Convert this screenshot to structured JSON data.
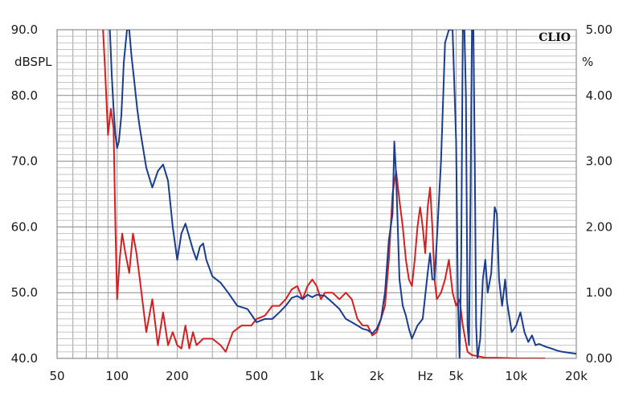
{
  "chart_data": {
    "type": "line",
    "title": "",
    "brand": "CLIO",
    "x_unit_label": "Hz",
    "left_axis": {
      "unit": "dBSPL",
      "range": [
        40,
        90
      ],
      "tick_labels": [
        "90.0",
        "80.0",
        "70.0",
        "60.0",
        "50.0",
        "40.0"
      ]
    },
    "right_axis": {
      "unit": "%",
      "range": [
        0,
        5
      ],
      "tick_labels": [
        "5.00",
        "4.00",
        "3.00",
        "2.00",
        "1.00",
        "0.00"
      ]
    },
    "x_axis": {
      "scale": "log",
      "range": [
        50,
        20000
      ],
      "tick_labels": [
        "50",
        "100",
        "200",
        "500",
        "1k",
        "2k",
        "5k",
        "10k",
        "20k"
      ]
    },
    "grid": true,
    "colors": {
      "red_series": "#d42020",
      "blue_series": "#1a3d8f",
      "grid": "#a0a0a0",
      "frame": "#777777"
    },
    "series": [
      {
        "color": "#d42020",
        "axis": "left",
        "points": [
          [
            85,
            90
          ],
          [
            87,
            84
          ],
          [
            90,
            74
          ],
          [
            93,
            78
          ],
          [
            96,
            75
          ],
          [
            98,
            60
          ],
          [
            100,
            49
          ],
          [
            103,
            55
          ],
          [
            106,
            59
          ],
          [
            110,
            56
          ],
          [
            115,
            53
          ],
          [
            120,
            59
          ],
          [
            125,
            56
          ],
          [
            130,
            52
          ],
          [
            140,
            44
          ],
          [
            150,
            49
          ],
          [
            160,
            42
          ],
          [
            170,
            47
          ],
          [
            180,
            42
          ],
          [
            190,
            44
          ],
          [
            200,
            42
          ],
          [
            210,
            41.5
          ],
          [
            220,
            45
          ],
          [
            230,
            41.5
          ],
          [
            240,
            44
          ],
          [
            250,
            42
          ],
          [
            270,
            43
          ],
          [
            300,
            43
          ],
          [
            330,
            42
          ],
          [
            350,
            41
          ],
          [
            380,
            44
          ],
          [
            420,
            45
          ],
          [
            470,
            45
          ],
          [
            500,
            46
          ],
          [
            550,
            46.5
          ],
          [
            600,
            48
          ],
          [
            650,
            48
          ],
          [
            700,
            49
          ],
          [
            750,
            50.5
          ],
          [
            800,
            51
          ],
          [
            850,
            49
          ],
          [
            900,
            51
          ],
          [
            950,
            52
          ],
          [
            1000,
            51
          ],
          [
            1050,
            49
          ],
          [
            1100,
            50
          ],
          [
            1200,
            50
          ],
          [
            1300,
            49
          ],
          [
            1400,
            50
          ],
          [
            1500,
            49
          ],
          [
            1600,
            46
          ],
          [
            1700,
            45
          ],
          [
            1800,
            45
          ],
          [
            1900,
            43.5
          ],
          [
            2000,
            44
          ],
          [
            2100,
            46
          ],
          [
            2200,
            48
          ],
          [
            2300,
            55
          ],
          [
            2400,
            65
          ],
          [
            2500,
            68.5
          ],
          [
            2600,
            64
          ],
          [
            2700,
            60
          ],
          [
            2800,
            55
          ],
          [
            2900,
            52
          ],
          [
            3000,
            51
          ],
          [
            3100,
            55
          ],
          [
            3200,
            60
          ],
          [
            3300,
            63
          ],
          [
            3400,
            60
          ],
          [
            3500,
            56
          ],
          [
            3600,
            63
          ],
          [
            3700,
            66
          ],
          [
            3800,
            60
          ],
          [
            3900,
            52
          ],
          [
            4000,
            49
          ],
          [
            4200,
            50
          ],
          [
            4400,
            52
          ],
          [
            4600,
            55
          ],
          [
            4800,
            50
          ],
          [
            5000,
            48
          ],
          [
            5200,
            49
          ],
          [
            5400,
            45
          ],
          [
            5700,
            41
          ],
          [
            6000,
            40.5
          ],
          [
            6500,
            40.3
          ],
          [
            7000,
            40.1
          ],
          [
            8000,
            40.1
          ],
          [
            10000,
            40
          ],
          [
            12000,
            40
          ],
          [
            14000,
            40
          ]
        ]
      },
      {
        "color": "#1a3d8f",
        "axis": "right",
        "points": [
          [
            92,
            5
          ],
          [
            94,
            4.3
          ],
          [
            96,
            3.8
          ],
          [
            98,
            3.4
          ],
          [
            100,
            3.2
          ],
          [
            102,
            3.3
          ],
          [
            105,
            3.7
          ],
          [
            108,
            4.5
          ],
          [
            112,
            5
          ],
          [
            115,
            5
          ],
          [
            118,
            4.6
          ],
          [
            122,
            4.2
          ],
          [
            126,
            3.8
          ],
          [
            130,
            3.5
          ],
          [
            140,
            2.9
          ],
          [
            150,
            2.6
          ],
          [
            160,
            2.85
          ],
          [
            170,
            2.95
          ],
          [
            180,
            2.7
          ],
          [
            190,
            2.0
          ],
          [
            200,
            1.5
          ],
          [
            210,
            1.9
          ],
          [
            220,
            2.05
          ],
          [
            230,
            1.85
          ],
          [
            240,
            1.65
          ],
          [
            250,
            1.5
          ],
          [
            260,
            1.7
          ],
          [
            270,
            1.75
          ],
          [
            280,
            1.5
          ],
          [
            300,
            1.25
          ],
          [
            330,
            1.15
          ],
          [
            360,
            1.0
          ],
          [
            400,
            0.8
          ],
          [
            450,
            0.75
          ],
          [
            500,
            0.55
          ],
          [
            550,
            0.6
          ],
          [
            600,
            0.6
          ],
          [
            650,
            0.7
          ],
          [
            700,
            0.8
          ],
          [
            750,
            0.92
          ],
          [
            800,
            0.95
          ],
          [
            850,
            0.9
          ],
          [
            900,
            0.97
          ],
          [
            950,
            0.93
          ],
          [
            1000,
            0.97
          ],
          [
            1100,
            0.95
          ],
          [
            1200,
            0.85
          ],
          [
            1300,
            0.75
          ],
          [
            1400,
            0.6
          ],
          [
            1500,
            0.55
          ],
          [
            1600,
            0.5
          ],
          [
            1700,
            0.45
          ],
          [
            1800,
            0.43
          ],
          [
            1900,
            0.38
          ],
          [
            2000,
            0.45
          ],
          [
            2100,
            0.6
          ],
          [
            2200,
            1.0
          ],
          [
            2300,
            1.8
          ],
          [
            2400,
            2.2
          ],
          [
            2450,
            3.3
          ],
          [
            2500,
            2.8
          ],
          [
            2600,
            1.2
          ],
          [
            2700,
            0.8
          ],
          [
            2800,
            0.65
          ],
          [
            2900,
            0.45
          ],
          [
            3000,
            0.3
          ],
          [
            3200,
            0.5
          ],
          [
            3400,
            0.6
          ],
          [
            3600,
            1.3
          ],
          [
            3700,
            1.6
          ],
          [
            3800,
            1.2
          ],
          [
            3900,
            1.2
          ],
          [
            4000,
            1.8
          ],
          [
            4200,
            3.0
          ],
          [
            4400,
            4.8
          ],
          [
            4600,
            5
          ],
          [
            4800,
            5
          ],
          [
            5000,
            3.3
          ],
          [
            5100,
            0.9
          ],
          [
            5200,
            0
          ],
          [
            5300,
            1.5
          ],
          [
            5400,
            5
          ],
          [
            5500,
            5
          ],
          [
            5600,
            4
          ],
          [
            5700,
            0.5
          ],
          [
            5800,
            0.2
          ],
          [
            5900,
            2.5
          ],
          [
            6000,
            5
          ],
          [
            6100,
            5
          ],
          [
            6200,
            3
          ],
          [
            6300,
            0.5
          ],
          [
            6400,
            0
          ],
          [
            6600,
            0.3
          ],
          [
            6800,
            1.2
          ],
          [
            7000,
            1.5
          ],
          [
            7200,
            1.0
          ],
          [
            7500,
            1.3
          ],
          [
            7800,
            2.3
          ],
          [
            8000,
            2.2
          ],
          [
            8200,
            1.2
          ],
          [
            8500,
            0.8
          ],
          [
            8800,
            1.2
          ],
          [
            9000,
            0.85
          ],
          [
            9500,
            0.4
          ],
          [
            10000,
            0.5
          ],
          [
            10500,
            0.7
          ],
          [
            11000,
            0.4
          ],
          [
            11500,
            0.25
          ],
          [
            12000,
            0.35
          ],
          [
            12500,
            0.2
          ],
          [
            13000,
            0.22
          ],
          [
            14000,
            0.18
          ],
          [
            15000,
            0.15
          ],
          [
            16000,
            0.12
          ],
          [
            17000,
            0.1
          ],
          [
            18000,
            0.09
          ],
          [
            20000,
            0.07
          ]
        ]
      }
    ]
  }
}
